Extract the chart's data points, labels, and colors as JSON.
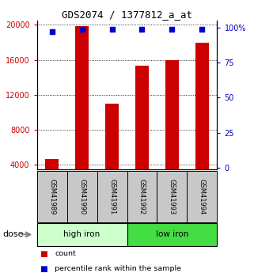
{
  "title": "GDS2074 / 1377812_a_at",
  "categories": [
    "GSM41989",
    "GSM41990",
    "GSM41991",
    "GSM41992",
    "GSM41993",
    "GSM41994"
  ],
  "bar_values": [
    4700,
    19900,
    11000,
    15300,
    16000,
    18000
  ],
  "percentile_values": [
    97,
    99,
    99,
    99,
    99,
    99
  ],
  "bar_color": "#cc0000",
  "dot_color": "#0000cc",
  "ylim_left": [
    3500,
    20500
  ],
  "ylim_right": [
    -1,
    105
  ],
  "yticks_left": [
    4000,
    8000,
    12000,
    16000,
    20000
  ],
  "yticks_right": [
    0,
    25,
    50,
    75,
    100
  ],
  "ytick_labels_left": [
    "4000",
    "8000",
    "12000",
    "16000",
    "20000"
  ],
  "ytick_labels_right": [
    "0",
    "25",
    "50",
    "75",
    "100%"
  ],
  "groups": [
    {
      "label": "high iron",
      "indices": [
        0,
        1,
        2
      ],
      "color": "#ccffcc"
    },
    {
      "label": "low iron",
      "indices": [
        3,
        4,
        5
      ],
      "color": "#44dd44"
    }
  ],
  "dose_label": "dose",
  "legend": [
    {
      "label": "count",
      "color": "#cc0000"
    },
    {
      "label": "percentile rank within the sample",
      "color": "#0000cc"
    }
  ],
  "background_color": "#ffffff",
  "bar_width": 0.45
}
